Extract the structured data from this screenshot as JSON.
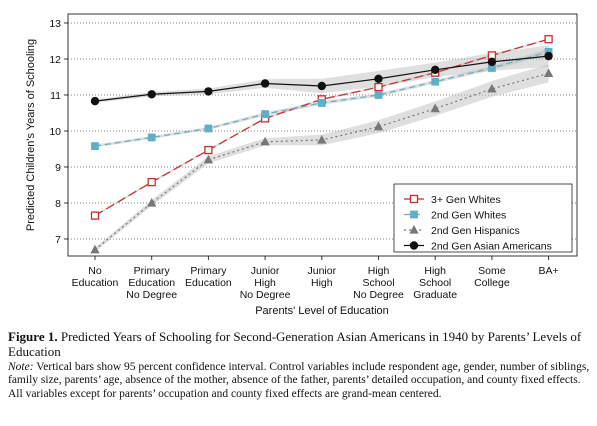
{
  "chart_data": {
    "type": "line",
    "ylabel": "Predicted Children's Years of Schooling",
    "xlabel": "Parents' Level of Education",
    "ylim": [
      6.5,
      13
    ],
    "yticks": [
      7,
      8,
      9,
      10,
      11,
      12,
      13
    ],
    "grid": "dotted horizontal",
    "legend_position": "bottom-right",
    "categories": [
      [
        "No",
        "Education"
      ],
      [
        "Primary",
        "Education",
        "No Degree"
      ],
      [
        "Primary",
        "Education"
      ],
      [
        "Junior",
        "High",
        "No Degree"
      ],
      [
        "Junior",
        "High"
      ],
      [
        "High",
        "School",
        "No Degree"
      ],
      [
        "High",
        "School",
        "Graduate"
      ],
      [
        "Some",
        "College"
      ],
      [
        "BA+"
      ]
    ],
    "series": [
      {
        "name": "3+ Gen Whites",
        "color": "#cc2b2b",
        "marker": "open-square",
        "dash": "long-dash",
        "values": [
          7.65,
          8.58,
          9.47,
          10.35,
          10.88,
          11.22,
          11.62,
          12.1,
          12.55
        ],
        "ci": [
          0.03,
          0.03,
          0.03,
          0.03,
          0.03,
          0.03,
          0.03,
          0.03,
          0.03
        ]
      },
      {
        "name": "2nd Gen Whites",
        "color": "#5fb0c6",
        "marker": "filled-square",
        "dash": "dash",
        "values": [
          9.58,
          9.82,
          10.07,
          10.47,
          10.78,
          11.0,
          11.37,
          11.75,
          12.2
        ],
        "ci": [
          0.04,
          0.04,
          0.04,
          0.05,
          0.05,
          0.05,
          0.05,
          0.06,
          0.08
        ]
      },
      {
        "name": "2nd Gen Hispanics",
        "color": "#777777",
        "marker": "triangle",
        "dash": "dot",
        "values": [
          6.7,
          8.0,
          9.2,
          9.7,
          9.75,
          10.12,
          10.62,
          11.17,
          11.6
        ],
        "ci": [
          0.06,
          0.08,
          0.1,
          0.1,
          0.15,
          0.18,
          0.2,
          0.22,
          0.25
        ]
      },
      {
        "name": "2nd Gen Asian Americans",
        "color": "#111111",
        "marker": "filled-circle",
        "dash": "solid",
        "values": [
          10.83,
          11.02,
          11.1,
          11.32,
          11.25,
          11.45,
          11.7,
          11.92,
          12.08
        ],
        "ci": [
          0.05,
          0.06,
          0.08,
          0.12,
          0.2,
          0.22,
          0.2,
          0.25,
          0.3
        ]
      }
    ]
  },
  "caption": {
    "figure_label": "Figure 1.",
    "title": "Predicted Years of Schooling for Second-Generation Asian Americans in 1940 by Parents’ Levels of Education",
    "note_label": "Note:",
    "note_text": "Vertical bars show 95 percent confidence interval. Control variables include respondent age, gender, number of siblings, family size, parents’ age, absence of the mother, absence of the father, parents’ detailed occupation, and county fixed effects. All variables except for parents’ occupation and county fixed effects are grand-mean centered."
  }
}
